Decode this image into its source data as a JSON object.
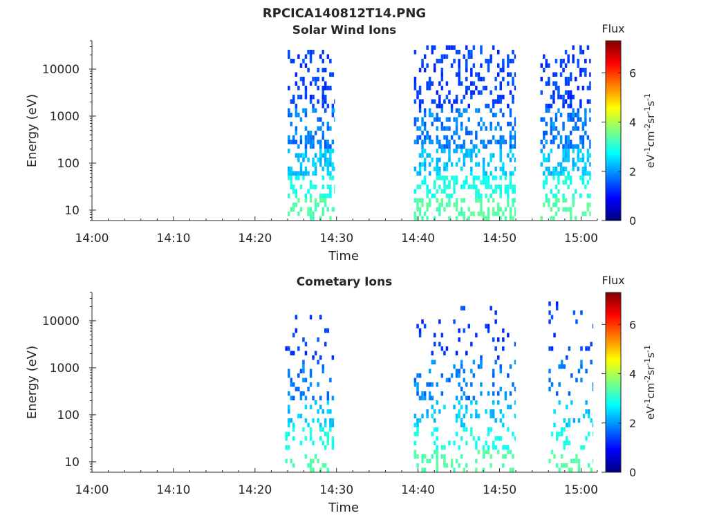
{
  "figure_title": "RPCICA140812T14.PNG",
  "colors": {
    "colormap": [
      "#00007f",
      "#0000ff",
      "#007fff",
      "#00ffff",
      "#7fff7f",
      "#ffff00",
      "#ff7f00",
      "#ff0000",
      "#7f0000"
    ]
  },
  "chart_data": [
    {
      "type": "heatmap",
      "title": "Solar Wind Ions",
      "xlabel": "Time",
      "ylabel": "Energy (eV)",
      "x_tick_labels": [
        "14:00",
        "14:10",
        "14:20",
        "14:30",
        "14:40",
        "14:50",
        "15:00"
      ],
      "x_ticks_min": [
        0,
        10,
        20,
        30,
        40,
        50,
        60
      ],
      "xlim_min": [
        0,
        62
      ],
      "y_scale": "log",
      "y_tick_labels": [
        "10",
        "100",
        "1000",
        "10000"
      ],
      "y_ticks": [
        10,
        100,
        1000,
        10000
      ],
      "ylim": [
        6,
        40000
      ],
      "colorbar": {
        "label_top": "Flux",
        "label": "eV-1cm-2sr-1s-1",
        "range": [
          0,
          7.3
        ],
        "ticks": [
          0,
          2,
          4,
          6
        ]
      },
      "bursts": [
        {
          "t_start": 24.0,
          "t_end": 29.8,
          "e_max": 28000
        },
        {
          "t_start": 39.5,
          "t_end": 52.0,
          "e_max": 33000
        },
        {
          "t_start": 55.0,
          "t_end": 61.2,
          "e_max": 33000
        }
      ]
    },
    {
      "type": "heatmap",
      "title": "Cometary Ions",
      "xlabel": "Time",
      "ylabel": "Energy (eV)",
      "x_tick_labels": [
        "14:00",
        "14:10",
        "14:20",
        "14:30",
        "14:40",
        "14:50",
        "15:00"
      ],
      "x_ticks_min": [
        0,
        10,
        20,
        30,
        40,
        50,
        60
      ],
      "xlim_min": [
        0,
        62
      ],
      "y_scale": "log",
      "y_tick_labels": [
        "10",
        "100",
        "1000",
        "10000"
      ],
      "y_ticks": [
        10,
        100,
        1000,
        10000
      ],
      "ylim": [
        6,
        40000
      ],
      "colorbar": {
        "label_top": "Flux",
        "label": "eV-1cm-2sr-1s-1",
        "range": [
          0,
          7.3
        ],
        "ticks": [
          0,
          2,
          4,
          6
        ]
      },
      "bursts": [
        {
          "t_start": 23.7,
          "t_end": 29.7,
          "e_max": 16000
        },
        {
          "t_start": 39.5,
          "t_end": 52.0,
          "e_max": 20000
        },
        {
          "t_start": 56.0,
          "t_end": 61.5,
          "e_max": 25000
        }
      ]
    }
  ]
}
